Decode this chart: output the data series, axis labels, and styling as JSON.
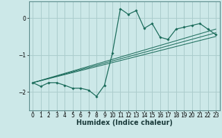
{
  "title": "",
  "xlabel": "Humidex (Indice chaleur)",
  "bg_color": "#cce8e8",
  "grid_color": "#aacccc",
  "line_color": "#1a6b5a",
  "xlim": [
    -0.5,
    23.5
  ],
  "ylim": [
    -2.5,
    0.45
  ],
  "yticks": [
    0,
    -1,
    -2
  ],
  "xticks": [
    0,
    1,
    2,
    3,
    4,
    5,
    6,
    7,
    8,
    9,
    10,
    11,
    12,
    13,
    14,
    15,
    16,
    17,
    18,
    19,
    20,
    21,
    22,
    23
  ],
  "main_x": [
    0,
    1,
    2,
    3,
    4,
    5,
    6,
    7,
    8,
    9,
    10,
    11,
    12,
    13,
    14,
    15,
    16,
    17,
    18,
    19,
    20,
    21,
    22,
    23
  ],
  "main_y": [
    -1.75,
    -1.85,
    -1.75,
    -1.75,
    -1.82,
    -1.9,
    -1.9,
    -1.95,
    -2.12,
    -1.82,
    -0.95,
    0.25,
    0.1,
    0.2,
    -0.28,
    -0.15,
    -0.52,
    -0.58,
    -0.3,
    -0.25,
    -0.2,
    -0.15,
    -0.3,
    -0.45
  ],
  "trend_lines": [
    {
      "x0": 0,
      "x1": 23,
      "y0": -1.75,
      "y1": -0.3
    },
    {
      "x0": 0,
      "x1": 23,
      "y0": -1.75,
      "y1": -0.4
    },
    {
      "x0": 0,
      "x1": 23,
      "y0": -1.75,
      "y1": -0.5
    }
  ],
  "tick_fontsize": 5.5,
  "xlabel_fontsize": 7,
  "spine_color": "#5a8a8a"
}
